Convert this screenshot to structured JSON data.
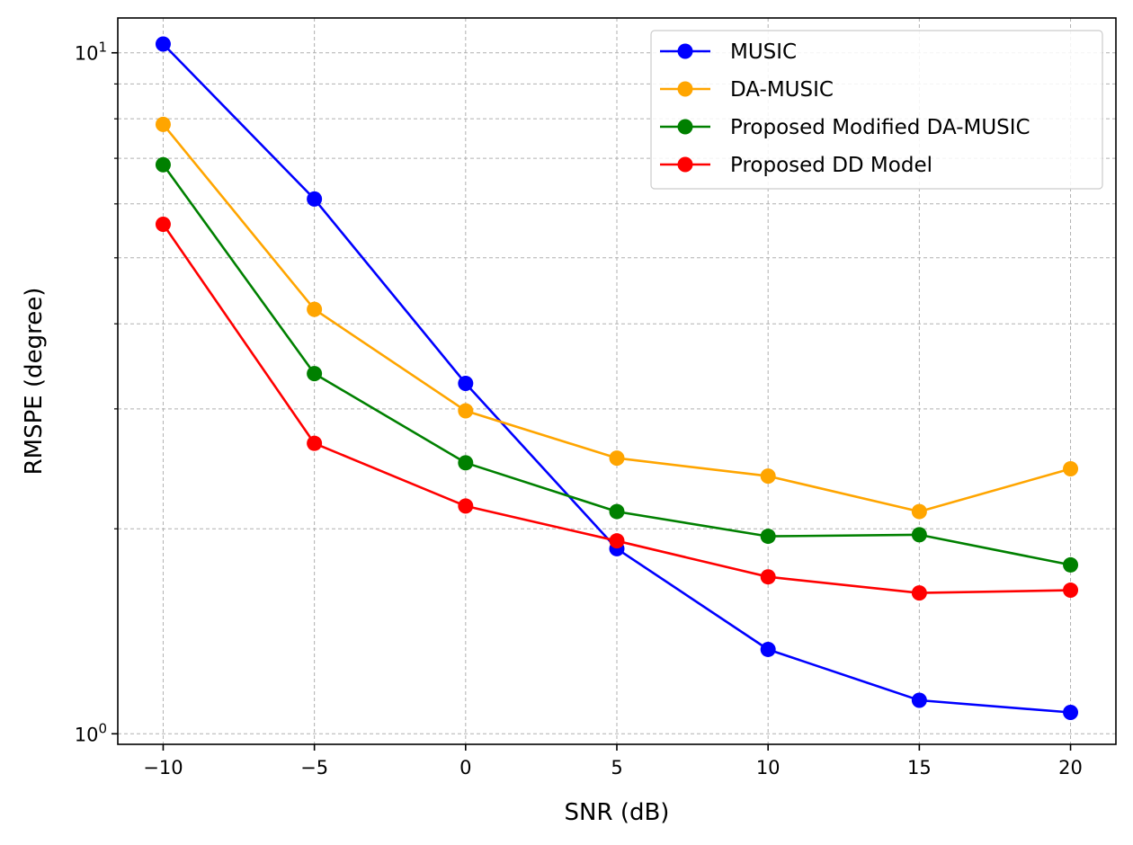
{
  "chart_data": {
    "type": "line",
    "title": "",
    "xlabel": "SNR (dB)",
    "ylabel": "RMSPE (degree)",
    "x": [
      -10,
      -5,
      0,
      5,
      10,
      15,
      20
    ],
    "x_ticks": [
      -10,
      -5,
      0,
      5,
      10,
      15,
      20
    ],
    "x_tick_labels": [
      "−10",
      "−5",
      "0",
      "5",
      "10",
      "15",
      "20"
    ],
    "xlim": [
      -11.5,
      21.5
    ],
    "yscale": "log",
    "ylim": [
      0.965,
      11.25
    ],
    "y_major_ticks": [
      1,
      10
    ],
    "y_tick_labels": [
      {
        "base": "10",
        "exp": "0"
      },
      {
        "base": "10",
        "exp": "1"
      }
    ],
    "y_minor_ticks": [
      2,
      3,
      4,
      5,
      6,
      7,
      8,
      9
    ],
    "grid": true,
    "legend_position": "top-right",
    "series": [
      {
        "name": "MUSIC",
        "color": "#0000ff",
        "values": [
          10.3,
          6.1,
          3.27,
          1.87,
          1.33,
          1.12,
          1.075
        ]
      },
      {
        "name": "DA-MUSIC",
        "color": "#ffa500",
        "values": [
          7.85,
          4.2,
          2.98,
          2.54,
          2.39,
          2.12,
          2.45
        ]
      },
      {
        "name": "Proposed Modified DA-MUSIC",
        "color": "#008000",
        "values": [
          6.85,
          3.38,
          2.5,
          2.12,
          1.95,
          1.96,
          1.77
        ]
      },
      {
        "name": "Proposed DD Model",
        "color": "#ff0000",
        "values": [
          5.6,
          2.67,
          2.16,
          1.92,
          1.7,
          1.61,
          1.625
        ]
      }
    ]
  }
}
